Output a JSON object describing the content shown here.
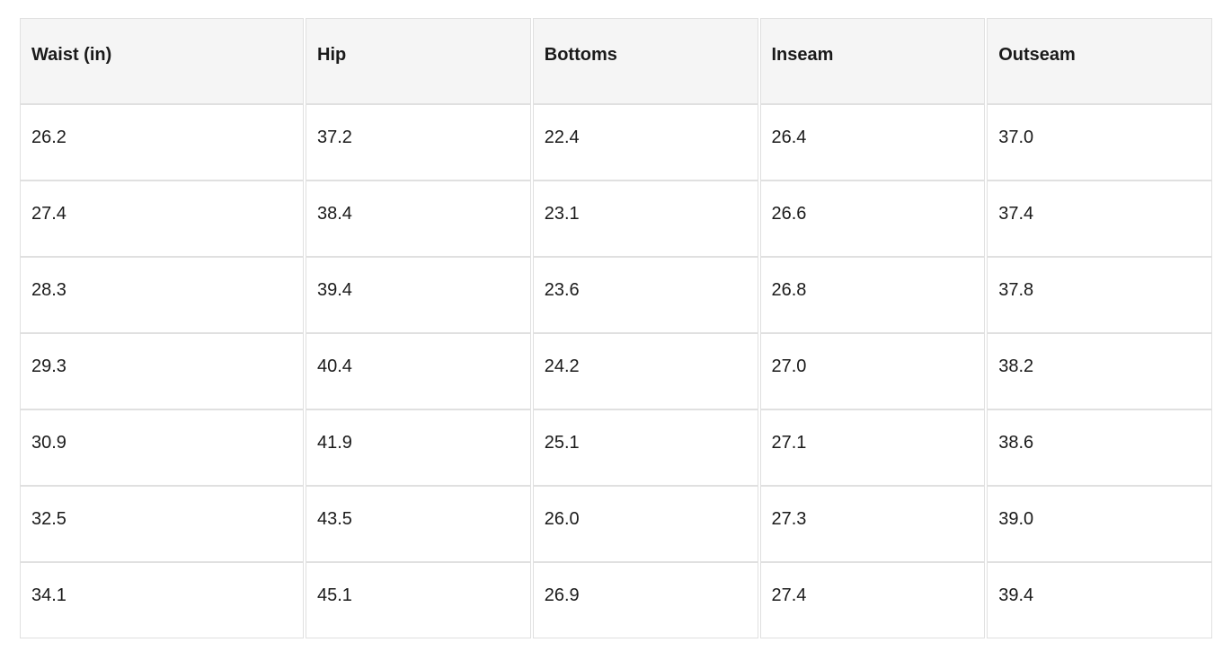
{
  "table": {
    "columns": [
      "Waist (in)",
      "Hip",
      "Bottoms",
      "Inseam",
      "Outseam"
    ],
    "rows": [
      [
        "26.2",
        "37.2",
        "22.4",
        "26.4",
        "37.0"
      ],
      [
        "27.4",
        "38.4",
        "23.1",
        "26.6",
        "37.4"
      ],
      [
        "28.3",
        "39.4",
        "23.6",
        "26.8",
        "37.8"
      ],
      [
        "29.3",
        "40.4",
        "24.2",
        "27.0",
        "38.2"
      ],
      [
        "30.9",
        "41.9",
        "25.1",
        "27.1",
        "38.6"
      ],
      [
        "32.5",
        "43.5",
        "26.0",
        "27.3",
        "39.0"
      ],
      [
        "34.1",
        "45.1",
        "26.9",
        "27.4",
        "39.4"
      ]
    ]
  },
  "colors": {
    "header_background": "#f5f5f5",
    "cell_border": "#e0e0e0",
    "text": "#1a1a1a",
    "page_background": "#ffffff"
  }
}
